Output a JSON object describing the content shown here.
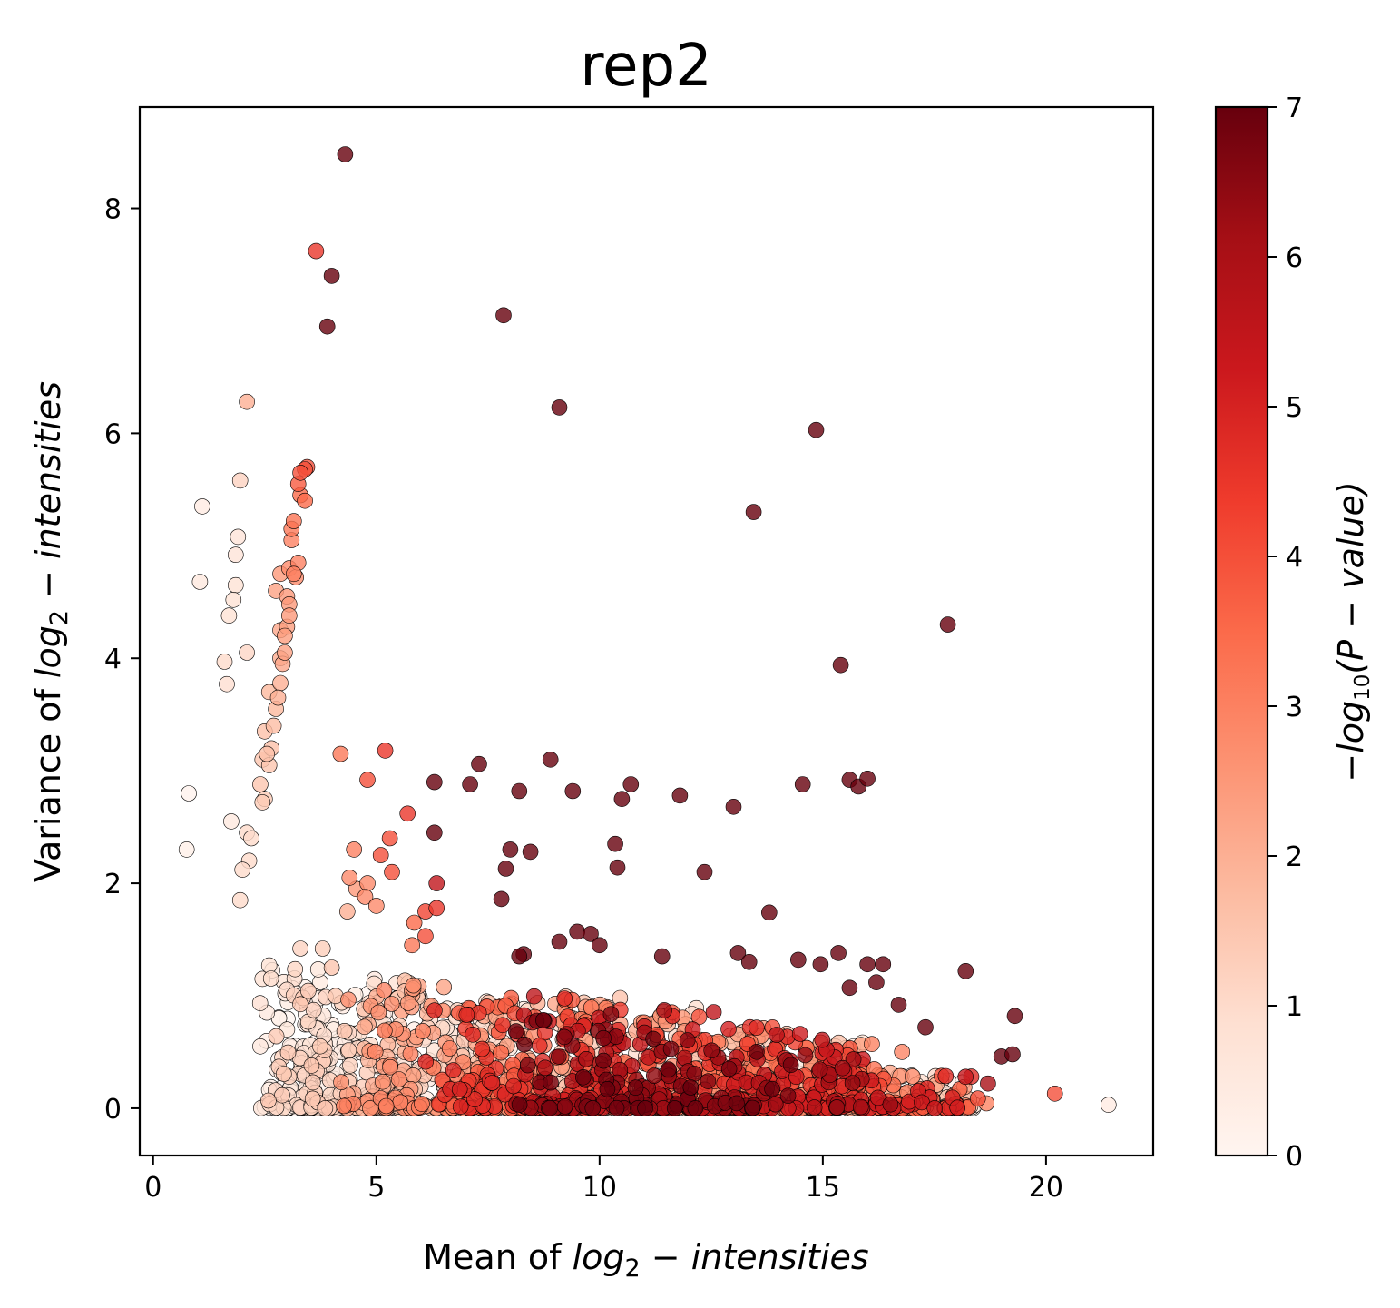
{
  "chart_data": {
    "type": "scatter",
    "title": "rep2",
    "xlabel": {
      "prefix": "Mean of ",
      "math": "log",
      "sub": "2",
      "suffix": " − intensities"
    },
    "ylabel": {
      "prefix": "Variance of ",
      "math": "log",
      "sub": "2",
      "suffix": " − intensities"
    },
    "colorbar_label": {
      "prefix": "−",
      "math": "log",
      "sub": "10",
      "suffix": "(P − value)"
    },
    "xlim": [
      -0.3,
      22.4
    ],
    "ylim": [
      -0.42,
      8.9
    ],
    "xticks": [
      0,
      5,
      10,
      15,
      20
    ],
    "xtick_labels": [
      "0",
      "5",
      "10",
      "15",
      "20"
    ],
    "yticks": [
      0,
      2,
      4,
      6,
      8
    ],
    "ytick_labels": [
      "0",
      "2",
      "4",
      "6",
      "8"
    ],
    "colorbar_range": [
      0,
      7
    ],
    "colorbar_ticks": [
      0,
      1,
      2,
      3,
      4,
      5,
      6,
      7
    ],
    "colorbar_tick_labels": [
      "0",
      "1",
      "2",
      "3",
      "4",
      "5",
      "6",
      "7"
    ],
    "colormap": "Reds",
    "colormap_stops": [
      "#fff5f0",
      "#fee0d2",
      "#fcbba1",
      "#fc9272",
      "#fb6a4a",
      "#ef3b2c",
      "#cb181d",
      "#a50f15",
      "#67000d"
    ],
    "marker_edge_color": "#000000",
    "grid": false,
    "legend": "none",
    "points": [
      [
        4.3,
        8.48,
        7
      ],
      [
        3.65,
        7.62,
        4.5
      ],
      [
        4.0,
        7.4,
        7
      ],
      [
        3.9,
        6.95,
        7
      ],
      [
        7.85,
        7.05,
        7
      ],
      [
        9.1,
        6.23,
        7
      ],
      [
        14.85,
        6.03,
        7
      ],
      [
        13.45,
        5.3,
        7
      ],
      [
        17.8,
        4.3,
        7
      ],
      [
        15.4,
        3.94,
        7
      ],
      [
        2.1,
        6.28,
        2
      ],
      [
        1.95,
        5.58,
        1.2
      ],
      [
        1.1,
        5.35,
        0.4
      ],
      [
        1.9,
        5.08,
        0.7
      ],
      [
        1.85,
        4.92,
        0.7
      ],
      [
        1.05,
        4.68,
        0.5
      ],
      [
        1.85,
        4.65,
        0.8
      ],
      [
        1.8,
        4.52,
        0.8
      ],
      [
        1.7,
        4.38,
        0.8
      ],
      [
        2.1,
        4.05,
        1.1
      ],
      [
        1.6,
        3.97,
        1.0
      ],
      [
        1.65,
        3.77,
        0.9
      ],
      [
        0.8,
        2.8,
        0.1
      ],
      [
        0.75,
        2.3,
        0.2
      ],
      [
        1.75,
        2.55,
        0.5
      ],
      [
        2.1,
        2.45,
        1.0
      ],
      [
        2.2,
        2.4,
        1.0
      ],
      [
        2.15,
        2.2,
        1.0
      ],
      [
        2.0,
        2.12,
        1.0
      ],
      [
        1.95,
        1.85,
        1.0
      ],
      [
        3.45,
        5.7,
        4.0
      ],
      [
        3.4,
        5.68,
        4.0
      ],
      [
        3.3,
        5.65,
        4.0
      ],
      [
        3.25,
        5.55,
        3.8
      ],
      [
        3.3,
        5.45,
        3.5
      ],
      [
        3.4,
        5.4,
        3.5
      ],
      [
        3.15,
        5.22,
        3.3
      ],
      [
        3.1,
        5.15,
        3.2
      ],
      [
        3.1,
        5.05,
        3.0
      ],
      [
        3.25,
        4.85,
        3.0
      ],
      [
        3.15,
        4.75,
        3.0
      ],
      [
        3.05,
        4.8,
        2.8
      ],
      [
        3.2,
        4.72,
        2.8
      ],
      [
        2.85,
        4.75,
        2.5
      ],
      [
        3.0,
        4.55,
        2.5
      ],
      [
        3.05,
        4.48,
        2.5
      ],
      [
        2.75,
        4.6,
        2.3
      ],
      [
        3.05,
        4.38,
        2.5
      ],
      [
        3.0,
        4.28,
        2.4
      ],
      [
        2.95,
        4.2,
        2.4
      ],
      [
        2.85,
        4.25,
        2.2
      ],
      [
        2.95,
        4.05,
        2.3
      ],
      [
        2.85,
        4.0,
        2.1
      ],
      [
        2.9,
        3.95,
        2.2
      ],
      [
        2.85,
        3.78,
        2.0
      ],
      [
        2.8,
        3.65,
        2.0
      ],
      [
        2.6,
        3.7,
        1.8
      ],
      [
        2.75,
        3.55,
        1.8
      ],
      [
        2.7,
        3.4,
        1.7
      ],
      [
        2.5,
        3.35,
        1.6
      ],
      [
        2.65,
        3.2,
        1.6
      ],
      [
        2.55,
        3.15,
        1.6
      ],
      [
        2.45,
        3.1,
        1.5
      ],
      [
        2.4,
        2.88,
        1.5
      ],
      [
        2.5,
        2.75,
        1.4
      ],
      [
        2.45,
        2.72,
        1.4
      ],
      [
        2.6,
        3.05,
        1.5
      ],
      [
        4.2,
        3.15,
        3.2
      ],
      [
        5.2,
        3.18,
        4.5
      ],
      [
        4.8,
        2.92,
        4.0
      ],
      [
        5.7,
        2.62,
        4.5
      ],
      [
        5.3,
        2.4,
        4.0
      ],
      [
        5.1,
        2.25,
        4.0
      ],
      [
        5.35,
        2.1,
        4.0
      ],
      [
        4.5,
        2.3,
        3.0
      ],
      [
        4.4,
        2.05,
        2.8
      ],
      [
        4.55,
        1.95,
        2.5
      ],
      [
        4.8,
        2.0,
        2.8
      ],
      [
        4.75,
        1.88,
        2.8
      ],
      [
        5.0,
        1.8,
        2.8
      ],
      [
        4.35,
        1.75,
        2.0
      ],
      [
        5.85,
        1.65,
        3.5
      ],
      [
        6.1,
        1.75,
        4.2
      ],
      [
        6.35,
        1.78,
        4.5
      ],
      [
        6.35,
        2.0,
        5.5
      ],
      [
        6.1,
        1.53,
        4.0
      ],
      [
        5.8,
        1.45,
        3.2
      ],
      [
        6.3,
        2.9,
        7
      ],
      [
        6.3,
        2.45,
        7
      ],
      [
        7.1,
        2.88,
        7
      ],
      [
        7.3,
        3.06,
        7
      ],
      [
        8.2,
        2.82,
        7
      ],
      [
        8.9,
        3.1,
        7
      ],
      [
        9.4,
        2.82,
        7
      ],
      [
        10.5,
        2.75,
        7
      ],
      [
        10.7,
        2.88,
        7
      ],
      [
        11.8,
        2.78,
        7
      ],
      [
        13.0,
        2.68,
        7
      ],
      [
        14.55,
        2.88,
        7
      ],
      [
        15.6,
        2.92,
        7
      ],
      [
        15.8,
        2.86,
        7
      ],
      [
        16.0,
        2.93,
        7
      ],
      [
        8.0,
        2.3,
        7
      ],
      [
        8.45,
        2.28,
        7
      ],
      [
        7.9,
        2.13,
        7
      ],
      [
        7.8,
        1.86,
        7
      ],
      [
        10.35,
        2.35,
        7
      ],
      [
        10.4,
        2.14,
        7
      ],
      [
        12.35,
        2.1,
        7
      ],
      [
        13.8,
        1.74,
        7
      ],
      [
        2.4,
        0.55,
        0.5
      ],
      [
        2.45,
        1.15,
        0.8
      ],
      [
        2.6,
        1.27,
        0.8
      ],
      [
        2.55,
        0.85,
        0.5
      ],
      [
        3.3,
        1.42,
        1.2
      ],
      [
        3.8,
        1.42,
        1.3
      ],
      [
        4.0,
        1.25,
        1.5
      ],
      [
        3.0,
        0.7,
        0.6
      ],
      [
        9.5,
        1.57,
        7
      ],
      [
        9.8,
        1.55,
        7
      ],
      [
        9.1,
        1.48,
        7
      ],
      [
        10.0,
        1.45,
        7
      ],
      [
        8.3,
        1.37,
        7
      ],
      [
        8.2,
        1.35,
        7
      ],
      [
        11.4,
        1.35,
        7
      ],
      [
        13.1,
        1.38,
        7
      ],
      [
        13.35,
        1.3,
        7
      ],
      [
        14.45,
        1.32,
        7
      ],
      [
        14.95,
        1.28,
        7
      ],
      [
        15.35,
        1.38,
        7
      ],
      [
        16.0,
        1.28,
        7
      ],
      [
        16.35,
        1.28,
        7
      ],
      [
        18.2,
        1.22,
        7
      ],
      [
        15.6,
        1.07,
        7
      ],
      [
        16.2,
        1.12,
        7
      ],
      [
        19.3,
        0.82,
        7
      ],
      [
        17.3,
        0.72,
        7
      ],
      [
        16.7,
        0.92,
        7
      ],
      [
        19.0,
        0.46,
        7
      ],
      [
        19.25,
        0.48,
        7
      ],
      [
        18.7,
        0.22,
        6
      ],
      [
        20.2,
        0.13,
        4
      ],
      [
        21.4,
        0.03,
        0.4
      ]
    ],
    "clusters": [
      {
        "x_center": 3.6,
        "x_spread": 0.8,
        "y_max": 1.25,
        "count": 230,
        "c_min": 0.0,
        "c_max": 1.5
      },
      {
        "x_center": 5.5,
        "x_spread": 0.9,
        "y_max": 1.15,
        "count": 260,
        "c_min": 0.2,
        "c_max": 3.2
      },
      {
        "x_center": 7.3,
        "x_spread": 0.8,
        "y_max": 0.95,
        "count": 260,
        "c_min": 0.5,
        "c_max": 5.0
      },
      {
        "x_center": 9.3,
        "x_spread": 1.0,
        "y_max": 1.0,
        "count": 300,
        "c_min": 0.8,
        "c_max": 7.0
      },
      {
        "x_center": 11.3,
        "x_spread": 1.1,
        "y_max": 0.9,
        "count": 330,
        "c_min": 0.8,
        "c_max": 7.0
      },
      {
        "x_center": 13.3,
        "x_spread": 1.1,
        "y_max": 0.75,
        "count": 300,
        "c_min": 0.5,
        "c_max": 7.0
      },
      {
        "x_center": 15.2,
        "x_spread": 1.0,
        "y_max": 0.6,
        "count": 240,
        "c_min": 0.3,
        "c_max": 6.5
      },
      {
        "x_center": 17.1,
        "x_spread": 1.0,
        "y_max": 0.3,
        "count": 160,
        "c_min": 0.1,
        "c_max": 5.5
      }
    ]
  }
}
